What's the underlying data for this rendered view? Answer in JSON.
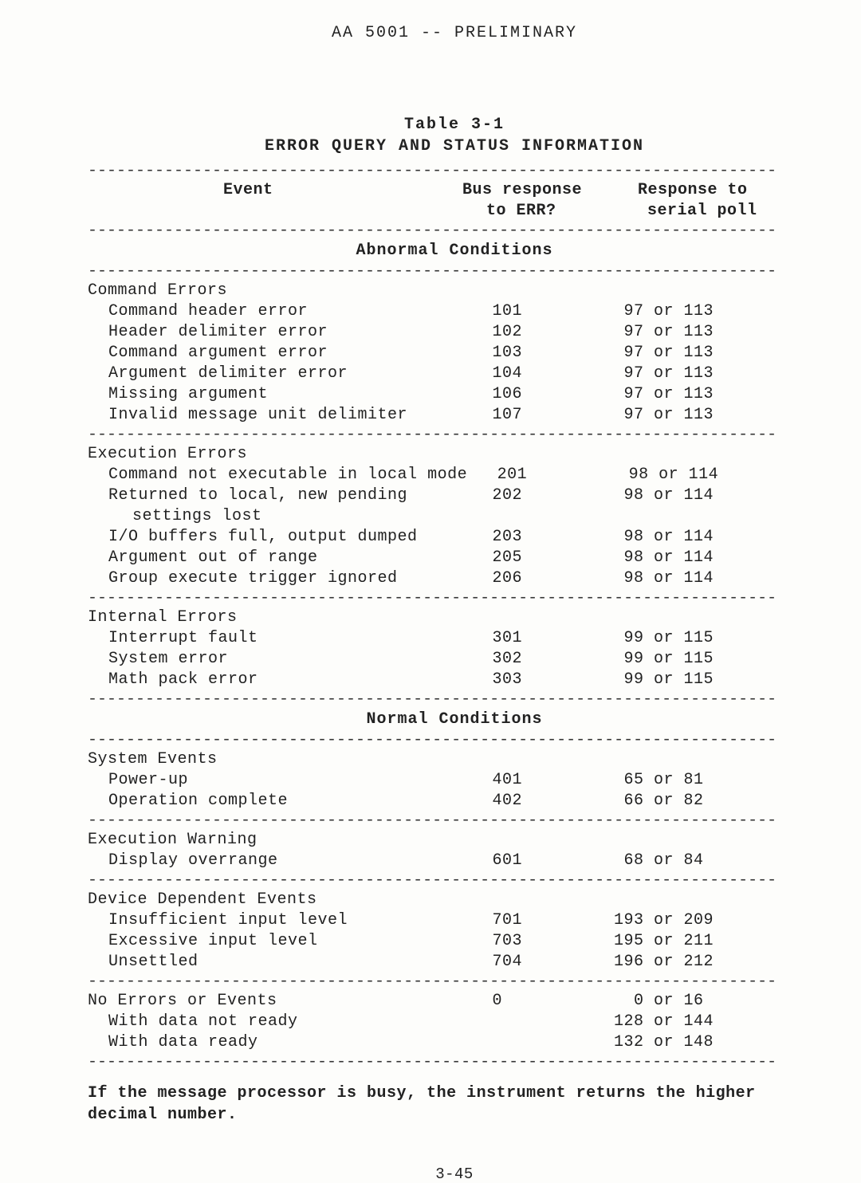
{
  "doc_header": "AA 5001 -- PRELIMINARY",
  "table_number": "Table 3-1",
  "table_name": "ERROR QUERY AND STATUS INFORMATION",
  "columns": {
    "event": "Event",
    "bus1": "Bus response",
    "bus2": "to ERR?",
    "resp1": "Response to",
    "resp2": "serial poll"
  },
  "section_abnormal": "Abnormal Conditions",
  "section_normal": "Normal Conditions",
  "groups": [
    {
      "title": "Command Errors",
      "rows": [
        {
          "label": "Command header error",
          "bus": "101",
          "resp": " 97 or 113"
        },
        {
          "label": "Header delimiter error",
          "bus": "102",
          "resp": " 97 or 113"
        },
        {
          "label": "Command argument error",
          "bus": "103",
          "resp": " 97 or 113"
        },
        {
          "label": "Argument delimiter error",
          "bus": "104",
          "resp": " 97 or 113"
        },
        {
          "label": "Missing argument",
          "bus": "106",
          "resp": " 97 or 113"
        },
        {
          "label": "Invalid message unit delimiter",
          "bus": "107",
          "resp": " 97 or 113"
        }
      ]
    },
    {
      "title": "Execution Errors",
      "rows": [
        {
          "label": "Command not executable in local mode",
          "bus": "201",
          "resp": " 98 or 114"
        },
        {
          "label": "Returned to local, new pending",
          "bus": "202",
          "resp": " 98 or 114"
        },
        {
          "label2": "settings lost"
        },
        {
          "label": "I/O buffers full, output dumped",
          "bus": "203",
          "resp": " 98 or 114"
        },
        {
          "label": "Argument out of range",
          "bus": "205",
          "resp": " 98 or 114"
        },
        {
          "label": "Group execute trigger ignored",
          "bus": "206",
          "resp": " 98 or 114"
        }
      ]
    },
    {
      "title": "Internal Errors",
      "rows": [
        {
          "label": "Interrupt fault",
          "bus": "301",
          "resp": " 99 or 115"
        },
        {
          "label": "System error",
          "bus": "302",
          "resp": " 99 or 115"
        },
        {
          "label": "Math pack error",
          "bus": "303",
          "resp": " 99 or 115"
        }
      ]
    }
  ],
  "normal_groups": [
    {
      "title": "System Events",
      "rows": [
        {
          "label": "Power-up",
          "bus": "401",
          "resp": " 65 or 81"
        },
        {
          "label": "Operation complete",
          "bus": "402",
          "resp": " 66 or 82"
        }
      ]
    },
    {
      "title": "Execution Warning",
      "rows": [
        {
          "label": "Display overrange",
          "bus": "601",
          "resp": " 68 or 84"
        }
      ]
    },
    {
      "title": "Device Dependent Events",
      "rows": [
        {
          "label": "Insufficient input level",
          "bus": "701",
          "resp": "193 or 209"
        },
        {
          "label": "Excessive input level",
          "bus": "703",
          "resp": "195 or 211"
        },
        {
          "label": "Unsettled",
          "bus": "704",
          "resp": "196 or 212"
        }
      ]
    },
    {
      "title": "No Errors or Events",
      "title_bus": "0",
      "title_resp": "  0 or 16",
      "rows": [
        {
          "label": "With data not ready",
          "bus": "",
          "resp": "128 or 144"
        },
        {
          "label": "With data ready",
          "bus": "",
          "resp": "132 or 148"
        }
      ]
    }
  ],
  "footnote": "If the message processor is busy, the instrument returns the higher decimal number.",
  "page_number": "3-45",
  "dash": "------------------------------------------------------------------------"
}
